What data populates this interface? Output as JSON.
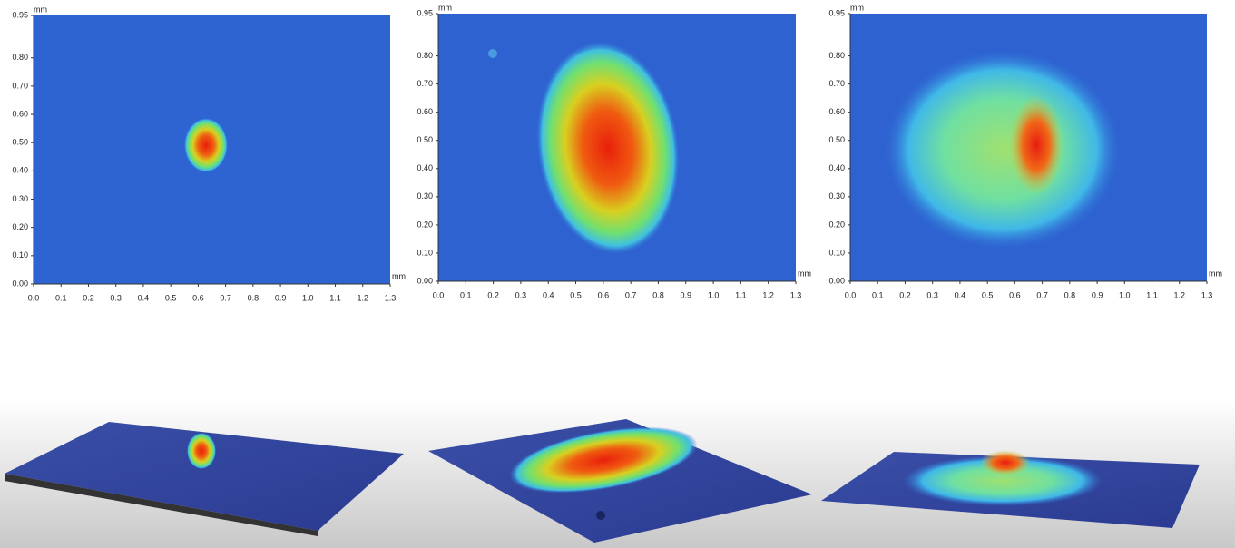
{
  "chart_data": [
    {
      "type": "heatmap",
      "x_label": "mm",
      "y_label": "mm",
      "xlim": [
        0,
        1.3
      ],
      "ylim": [
        0,
        0.95
      ],
      "xticks": [
        {
          "value": 0,
          "label": "0.0"
        },
        {
          "value": 0.1,
          "label": "0.1"
        },
        {
          "value": 0.2,
          "label": "0.2"
        },
        {
          "value": 0.3,
          "label": "0.3"
        },
        {
          "value": 0.4,
          "label": "0.4"
        },
        {
          "value": 0.5,
          "label": "0.5"
        },
        {
          "value": 0.6,
          "label": "0.6"
        },
        {
          "value": 0.7,
          "label": "0.7"
        },
        {
          "value": 0.8,
          "label": "0.8"
        },
        {
          "value": 0.9,
          "label": "0.9"
        },
        {
          "value": 1,
          "label": "1.0"
        },
        {
          "value": 1.1,
          "label": "1.1"
        },
        {
          "value": 1.2,
          "label": "1.2"
        },
        {
          "value": 1.3,
          "label": "1.3"
        }
      ],
      "yticks": [
        {
          "value": 0,
          "label": "0.00"
        },
        {
          "value": 0.1,
          "label": "0.10"
        },
        {
          "value": 0.2,
          "label": "0.20"
        },
        {
          "value": 0.3,
          "label": "0.30"
        },
        {
          "value": 0.4,
          "label": "0.40"
        },
        {
          "value": 0.5,
          "label": "0.50"
        },
        {
          "value": 0.6,
          "label": "0.60"
        },
        {
          "value": 0.7,
          "label": "0.70"
        },
        {
          "value": 0.8,
          "label": "0.80"
        },
        0.95
      ]
    },
    {
      "type": "heatmap",
      "x_label": "mm",
      "y_label": "mm",
      "xlim": [
        0,
        1.3
      ],
      "ylim": [
        0,
        0.95
      ],
      "xticks": [
        {
          "value": 0,
          "label": "0.0"
        },
        {
          "value": 0.1,
          "label": "0.1"
        },
        {
          "value": 0.2,
          "label": "0.2"
        },
        {
          "value": 0.3,
          "label": "0.3"
        },
        {
          "value": 0.4,
          "label": "0.4"
        },
        {
          "value": 0.5,
          "label": "0.5"
        },
        {
          "value": 0.6,
          "label": "0.6"
        },
        {
          "value": 0.7,
          "label": "0.7"
        },
        {
          "value": 0.8,
          "label": "0.8"
        },
        {
          "value": 0.9,
          "label": "0.9"
        },
        {
          "value": 1,
          "label": "1.0"
        },
        {
          "value": 1.1,
          "label": "1.1"
        },
        {
          "value": 1.2,
          "label": "1.2"
        },
        {
          "value": 1.3,
          "label": "1.3"
        }
      ],
      "yticks": [
        {
          "value": 0,
          "label": "0.00"
        },
        {
          "value": 0.1,
          "label": "0.10"
        },
        {
          "value": 0.2,
          "label": "0.20"
        },
        {
          "value": 0.3,
          "label": "0.30"
        },
        {
          "value": 0.4,
          "label": "0.40"
        },
        {
          "value": 0.5,
          "label": "0.50"
        },
        {
          "value": 0.6,
          "label": "0.60"
        },
        {
          "value": 0.7,
          "label": "0.70"
        },
        {
          "value": 0.8,
          "label": "0.80"
        },
        0.95
      ]
    },
    {
      "type": "heatmap",
      "x_label": "mm",
      "y_label": "mm",
      "xlim": [
        0,
        1.3
      ],
      "ylim": [
        0,
        0.95
      ],
      "xticks": [
        {
          "value": 0,
          "label": "0.0"
        },
        {
          "value": 0.1,
          "label": "0.1"
        },
        {
          "value": 0.2,
          "label": "0.2"
        },
        {
          "value": 0.3,
          "label": "0.3"
        },
        {
          "value": 0.4,
          "label": "0.4"
        },
        {
          "value": 0.5,
          "label": "0.5"
        },
        {
          "value": 0.6,
          "label": "0.6"
        },
        {
          "value": 0.7,
          "label": "0.7"
        },
        {
          "value": 0.8,
          "label": "0.8"
        },
        {
          "value": 0.9,
          "label": "0.9"
        },
        {
          "value": 1,
          "label": "1.0"
        },
        {
          "value": 1.1,
          "label": "1.1"
        },
        {
          "value": 1.2,
          "label": "1.2"
        },
        {
          "value": 1.3,
          "label": "1.3"
        }
      ],
      "yticks": [
        {
          "value": 0,
          "label": "0.00"
        },
        {
          "value": 0.1,
          "label": "0.10"
        },
        {
          "value": 0.2,
          "label": "0.20"
        },
        {
          "value": 0.3,
          "label": "0.30"
        },
        {
          "value": 0.4,
          "label": "0.40"
        },
        {
          "value": 0.5,
          "label": "0.50"
        },
        {
          "value": 0.6,
          "label": "0.60"
        },
        {
          "value": 0.7,
          "label": "0.70"
        },
        {
          "value": 0.8,
          "label": "0.80"
        },
        0.95
      ]
    }
  ]
}
